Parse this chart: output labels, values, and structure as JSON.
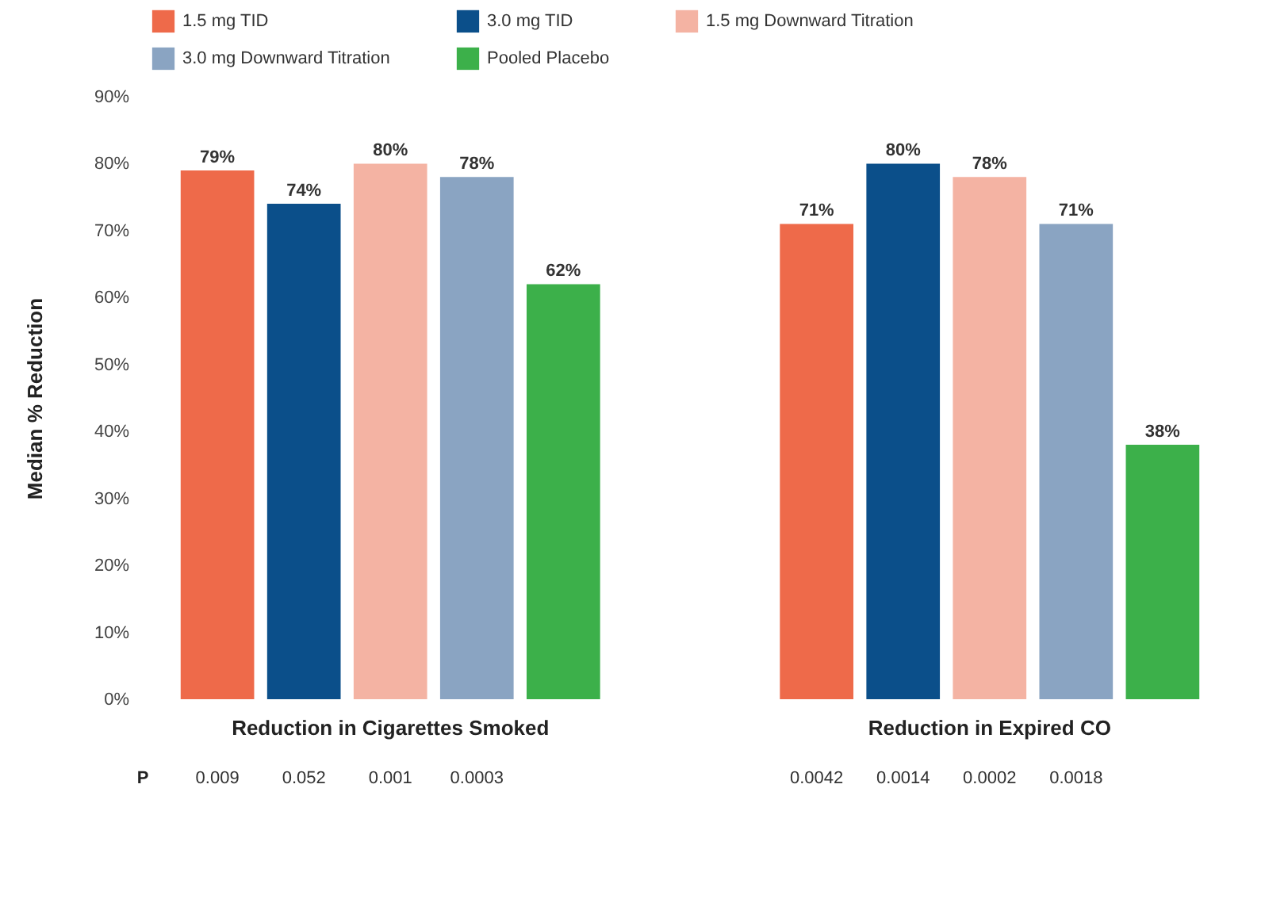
{
  "chart_data": {
    "type": "bar",
    "ylabel": "Median % Reduction",
    "categories": [
      "Reduction in Cigarettes Smoked",
      "Reduction in Expired CO"
    ],
    "series": [
      {
        "name": "1.5 mg TID",
        "color": "#ee6a4a",
        "values": [
          79,
          71
        ],
        "value_labels": [
          "79%",
          "71%"
        ]
      },
      {
        "name": "3.0 mg TID",
        "color": "#0b4f8a",
        "values": [
          74,
          80
        ],
        "value_labels": [
          "74%",
          "80%"
        ]
      },
      {
        "name": "1.5 mg Downward Titration",
        "color": "#f4b3a3",
        "values": [
          80,
          78
        ],
        "value_labels": [
          "80%",
          "78%"
        ]
      },
      {
        "name": "3.0 mg Downward Titration",
        "color": "#8aa4c2",
        "values": [
          78,
          71
        ],
        "value_labels": [
          "78%",
          "71%"
        ]
      },
      {
        "name": "Pooled Placebo",
        "color": "#3cb04a",
        "values": [
          62,
          38
        ],
        "value_labels": [
          "62%",
          "38%"
        ]
      }
    ],
    "ylim": [
      0,
      90
    ],
    "yticks": [
      {
        "value": 0,
        "label": "0%"
      },
      {
        "value": 10,
        "label": "10%"
      },
      {
        "value": 20,
        "label": "20%"
      },
      {
        "value": 30,
        "label": "30%"
      },
      {
        "value": 40,
        "label": "40%"
      },
      {
        "value": 50,
        "label": "50%"
      },
      {
        "value": 60,
        "label": "60%"
      },
      {
        "value": 70,
        "label": "70%"
      },
      {
        "value": 80,
        "label": "80%"
      },
      {
        "value": 90,
        "label": "90%"
      }
    ],
    "grid": false,
    "legend": "top left",
    "annotations": [
      "P",
      "0.009",
      "0.052",
      "0.001",
      "0.0003",
      "0.0042",
      "0.0014",
      "0.0002",
      "0.0018"
    ]
  }
}
